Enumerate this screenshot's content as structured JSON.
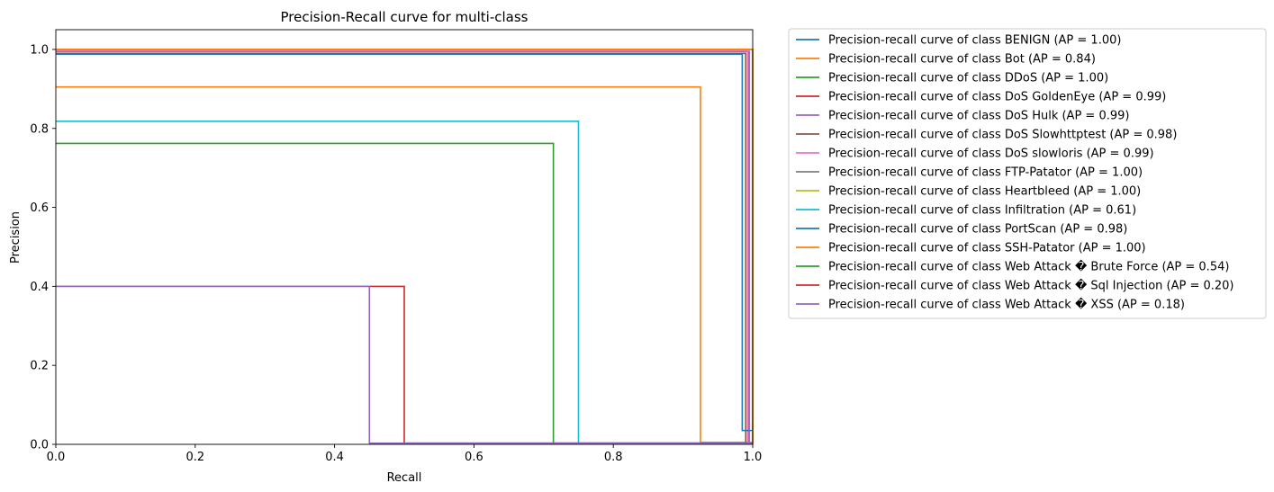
{
  "chart_data": {
    "type": "line",
    "title": "Precision-Recall curve for multi-class",
    "xlabel": "Recall",
    "ylabel": "Precision",
    "xlim": [
      0.0,
      1.0
    ],
    "ylim": [
      0.0,
      1.05
    ],
    "xticks": [
      "0.0",
      "0.2",
      "0.4",
      "0.6",
      "0.8",
      "1.0"
    ],
    "yticks": [
      "0.0",
      "0.2",
      "0.4",
      "0.6",
      "0.8",
      "1.0"
    ],
    "grid": false,
    "legend_position": "outside-right",
    "series": [
      {
        "name": "Precision-recall curve of class BENIGN (AP = 1.00)",
        "color": "#1f77b4",
        "points": [
          [
            1.0,
            0.0
          ],
          [
            1.0,
            1.0
          ],
          [
            0.0,
            1.0
          ]
        ]
      },
      {
        "name": "Precision-recall curve of class Bot (AP = 0.84)",
        "color": "#ff7f0e",
        "points": [
          [
            1.0,
            0.005
          ],
          [
            0.925,
            0.005
          ],
          [
            0.925,
            0.905
          ],
          [
            0.0,
            0.905
          ]
        ]
      },
      {
        "name": "Precision-recall curve of class DDoS (AP = 1.00)",
        "color": "#2ca02c",
        "points": [
          [
            1.0,
            0.0
          ],
          [
            1.0,
            1.0
          ],
          [
            0.0,
            1.0
          ]
        ]
      },
      {
        "name": "Precision-recall curve of class DoS GoldenEye (AP = 0.99)",
        "color": "#d62728",
        "points": [
          [
            1.0,
            0.003
          ],
          [
            0.993,
            0.003
          ],
          [
            0.993,
            0.995
          ],
          [
            0.0,
            0.995
          ]
        ]
      },
      {
        "name": "Precision-recall curve of class DoS Hulk (AP = 0.99)",
        "color": "#9467bd",
        "points": [
          [
            1.0,
            0.003
          ],
          [
            0.995,
            0.003
          ],
          [
            0.995,
            0.995
          ],
          [
            0.0,
            0.995
          ]
        ]
      },
      {
        "name": "Precision-recall curve of class DoS Slowhttptest (AP = 0.98)",
        "color": "#8c564b",
        "points": [
          [
            1.0,
            0.003
          ],
          [
            0.99,
            0.003
          ],
          [
            0.99,
            0.99
          ],
          [
            0.0,
            0.99
          ]
        ]
      },
      {
        "name": "Precision-recall curve of class DoS slowloris (AP = 0.99)",
        "color": "#e377c2",
        "points": [
          [
            1.0,
            0.003
          ],
          [
            0.993,
            0.003
          ],
          [
            0.993,
            0.997
          ],
          [
            0.0,
            0.997
          ]
        ]
      },
      {
        "name": "Precision-recall curve of class FTP-Patator (AP = 1.00)",
        "color": "#7f7f7f",
        "points": [
          [
            1.0,
            0.0
          ],
          [
            1.0,
            1.0
          ],
          [
            0.0,
            1.0
          ]
        ]
      },
      {
        "name": "Precision-recall curve of class Heartbleed (AP = 1.00)",
        "color": "#bcbd22",
        "points": [
          [
            1.0,
            0.0
          ],
          [
            1.0,
            1.0
          ],
          [
            0.0,
            1.0
          ]
        ]
      },
      {
        "name": "Precision-recall curve of class Infiltration (AP = 0.61)",
        "color": "#17becf",
        "points": [
          [
            1.0,
            0.003
          ],
          [
            0.75,
            0.003
          ],
          [
            0.75,
            0.818
          ],
          [
            0.0,
            0.818
          ]
        ]
      },
      {
        "name": "Precision-recall curve of class PortScan (AP = 0.98)",
        "color": "#1f77b4",
        "points": [
          [
            1.0,
            0.035
          ],
          [
            0.985,
            0.035
          ],
          [
            0.985,
            0.988
          ],
          [
            0.0,
            0.988
          ]
        ]
      },
      {
        "name": "Precision-recall curve of class SSH-Patator (AP = 1.00)",
        "color": "#ff7f0e",
        "points": [
          [
            1.0,
            0.0
          ],
          [
            1.0,
            1.0
          ],
          [
            0.0,
            1.0
          ]
        ]
      },
      {
        "name": "Precision-recall curve of class Web Attack � Brute Force (AP = 0.54)",
        "color": "#2ca02c",
        "points": [
          [
            1.0,
            0.003
          ],
          [
            0.714,
            0.003
          ],
          [
            0.714,
            0.762
          ],
          [
            0.0,
            0.762
          ]
        ]
      },
      {
        "name": "Precision-recall curve of class Web Attack � Sql Injection (AP = 0.20)",
        "color": "#d62728",
        "points": [
          [
            1.0,
            0.003
          ],
          [
            0.5,
            0.003
          ],
          [
            0.5,
            0.4
          ],
          [
            0.0,
            0.4
          ]
        ]
      },
      {
        "name": "Precision-recall curve of class Web Attack � XSS (AP = 0.18)",
        "color": "#9467bd",
        "points": [
          [
            1.0,
            0.003
          ],
          [
            0.45,
            0.003
          ],
          [
            0.45,
            0.4
          ],
          [
            0.0,
            0.4
          ]
        ]
      }
    ]
  }
}
